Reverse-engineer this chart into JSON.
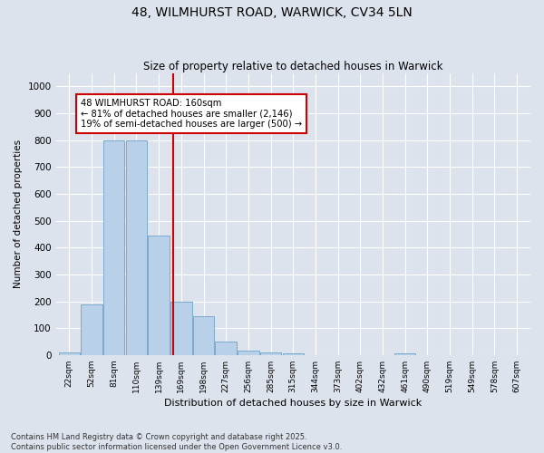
{
  "title": "48, WILMHURST ROAD, WARWICK, CV34 5LN",
  "subtitle": "Size of property relative to detached houses in Warwick",
  "xlabel": "Distribution of detached houses by size in Warwick",
  "ylabel": "Number of detached properties",
  "categories": [
    "22sqm",
    "52sqm",
    "81sqm",
    "110sqm",
    "139sqm",
    "169sqm",
    "198sqm",
    "227sqm",
    "256sqm",
    "285sqm",
    "315sqm",
    "344sqm",
    "373sqm",
    "402sqm",
    "432sqm",
    "461sqm",
    "490sqm",
    "519sqm",
    "549sqm",
    "578sqm",
    "607sqm"
  ],
  "values": [
    10,
    190,
    800,
    800,
    445,
    200,
    145,
    50,
    15,
    10,
    5,
    0,
    0,
    0,
    0,
    5,
    0,
    0,
    0,
    0,
    0
  ],
  "bar_color": "#b8d0e8",
  "bar_edge_color": "#7aaace",
  "figure_bg": "#dde3ed",
  "axes_bg": "#dde3ed",
  "grid_color": "#ffffff",
  "vline_x": 4.65,
  "vline_color": "#cc0000",
  "annotation_line1": "48 WILMHURST ROAD: 160sqm",
  "annotation_line2": "← 81% of detached houses are smaller (2,146)",
  "annotation_line3": "19% of semi-detached houses are larger (500) →",
  "annotation_box_color": "#ffffff",
  "annotation_box_edge": "#cc0000",
  "ylim": [
    0,
    1050
  ],
  "yticks": [
    0,
    100,
    200,
    300,
    400,
    500,
    600,
    700,
    800,
    900,
    1000
  ],
  "footer1": "Contains HM Land Registry data © Crown copyright and database right 2025.",
  "footer2": "Contains public sector information licensed under the Open Government Licence v3.0."
}
